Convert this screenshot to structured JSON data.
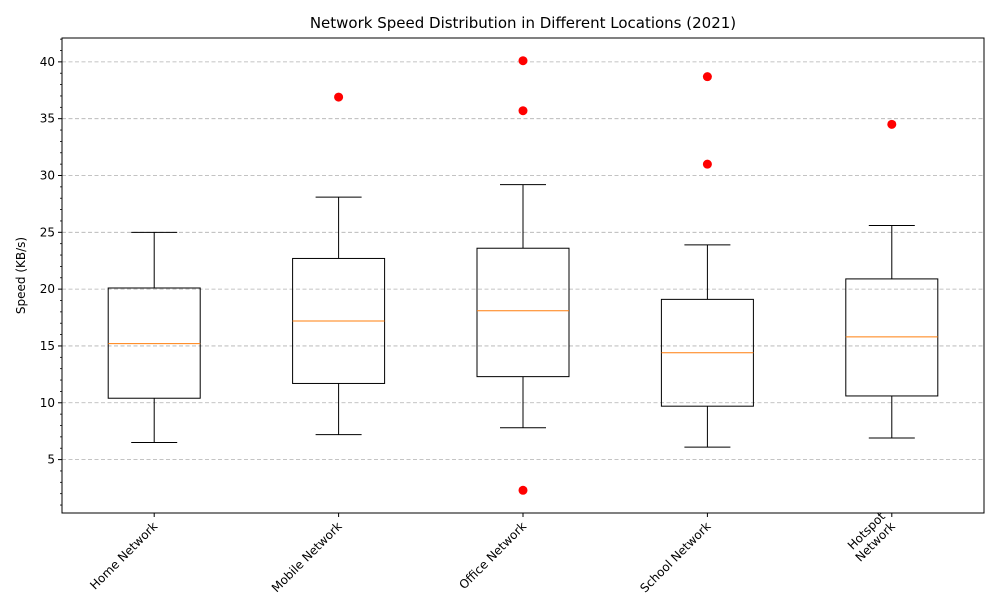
{
  "chart_data": {
    "type": "box",
    "title": "Network Speed Distribution in Different Locations (2021)",
    "xlabel": "",
    "ylabel": "Speed (KB/s)",
    "ylim": [
      0.3,
      42.1
    ],
    "yticks": [
      5,
      10,
      15,
      20,
      25,
      30,
      35,
      40
    ],
    "grid": "horizontal dashed",
    "categories": [
      "Home Network",
      "Mobile Network",
      "Office Network",
      "School Network",
      "Hotspot\nNetwork"
    ],
    "boxes": [
      {
        "category": "Home Network",
        "whisker_low": 6.5,
        "q1": 10.4,
        "median": 15.2,
        "q3": 20.1,
        "whisker_high": 25.0,
        "outliers": []
      },
      {
        "category": "Mobile Network",
        "whisker_low": 7.2,
        "q1": 11.7,
        "median": 17.2,
        "q3": 22.7,
        "whisker_high": 28.1,
        "outliers": [
          36.9
        ]
      },
      {
        "category": "Office Network",
        "whisker_low": 7.8,
        "q1": 12.3,
        "median": 18.1,
        "q3": 23.6,
        "whisker_high": 29.2,
        "outliers": [
          40.1,
          35.7,
          2.3
        ]
      },
      {
        "category": "School Network",
        "whisker_low": 6.1,
        "q1": 9.7,
        "median": 14.4,
        "q3": 19.1,
        "whisker_high": 23.9,
        "outliers": [
          38.7,
          31.0
        ]
      },
      {
        "category": "Hotspot\nNetwork",
        "whisker_low": 6.9,
        "q1": 10.6,
        "median": 15.8,
        "q3": 20.9,
        "whisker_high": 25.6,
        "outliers": [
          34.5
        ]
      }
    ],
    "colors": {
      "box": "#000000",
      "median": "#ff7f0e",
      "outlier": "#ff0000",
      "grid": "#b0b0b0"
    }
  }
}
